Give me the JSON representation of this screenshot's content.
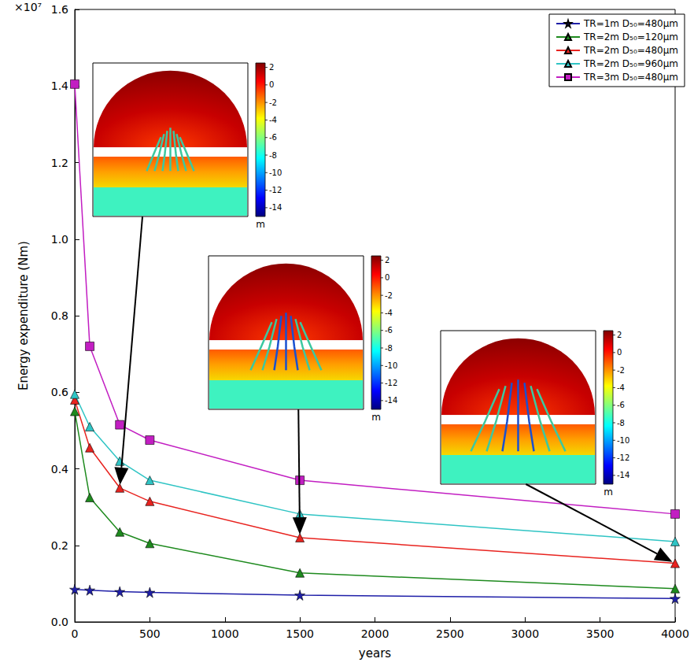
{
  "chart_data": {
    "type": "line",
    "x_label": "years",
    "y_label": "Energy expenditure (Nm)",
    "y_offset_text": "×10⁷",
    "xlim": [
      0,
      4000
    ],
    "xticks": [
      0,
      500,
      1000,
      1500,
      2000,
      2500,
      3000,
      3500,
      4000
    ],
    "ylim": [
      0,
      1.6
    ],
    "yticks": [
      {
        "value": 0,
        "label": "0.0"
      },
      {
        "value": 0.2,
        "label": "0.2"
      },
      {
        "value": 0.4,
        "label": "0.4"
      },
      {
        "value": 0.6,
        "label": "0.6"
      },
      {
        "value": 0.8,
        "label": "0.8"
      },
      {
        "value": 1.0,
        "label": "1.0"
      },
      {
        "value": 1.2,
        "label": "1.2"
      },
      {
        "value": 1.4,
        "label": "1.4"
      },
      {
        "value": 1.6,
        "label": "1.6"
      }
    ],
    "grid": false,
    "legend": "upper right",
    "x": [
      0,
      100,
      300,
      500,
      1500,
      4000
    ],
    "series": [
      {
        "name": "TR=1m D₅₀=480μm",
        "color": "#1f1fa8",
        "marker": "star",
        "values": [
          0.085,
          0.083,
          0.079,
          0.077,
          0.07,
          0.061
        ]
      },
      {
        "name": "TR=2m D₅₀=120μm",
        "color": "#1e8a1e",
        "marker": "triangle",
        "values": [
          0.55,
          0.325,
          0.235,
          0.205,
          0.128,
          0.087
        ]
      },
      {
        "name": "TR=2m D₅₀=480μm",
        "color": "#e8231f",
        "marker": "triangle",
        "values": [
          0.58,
          0.455,
          0.35,
          0.315,
          0.22,
          0.153
        ]
      },
      {
        "name": "TR=2m D₅₀=960μm",
        "color": "#2fc4c4",
        "marker": "triangle",
        "values": [
          0.595,
          0.51,
          0.42,
          0.37,
          0.282,
          0.21
        ]
      },
      {
        "name": "TR=3m D₅₀=480μm",
        "color": "#c21ec2",
        "marker": "square",
        "values": [
          1.405,
          0.72,
          0.515,
          0.475,
          0.37,
          0.282
        ]
      }
    ],
    "insets": [
      {
        "points_to": {
          "x": 300,
          "y": 0.35
        },
        "colorbar_range": [
          -15,
          2.5
        ],
        "colorbar_ticks": [
          2,
          0,
          -2,
          -4,
          -6,
          -8,
          -10,
          -12,
          -14
        ],
        "colorbar_label": "m"
      },
      {
        "points_to": {
          "x": 1500,
          "y": 0.22
        },
        "colorbar_range": [
          -15,
          2.5
        ],
        "colorbar_ticks": [
          2,
          0,
          -2,
          -4,
          -6,
          -8,
          -10,
          -12,
          -14
        ],
        "colorbar_label": "m"
      },
      {
        "points_to": {
          "x": 4000,
          "y": 0.153
        },
        "colorbar_range": [
          -15,
          2.5
        ],
        "colorbar_ticks": [
          2,
          0,
          -2,
          -4,
          -6,
          -8,
          -10,
          -12,
          -14
        ],
        "colorbar_label": "m"
      }
    ]
  }
}
